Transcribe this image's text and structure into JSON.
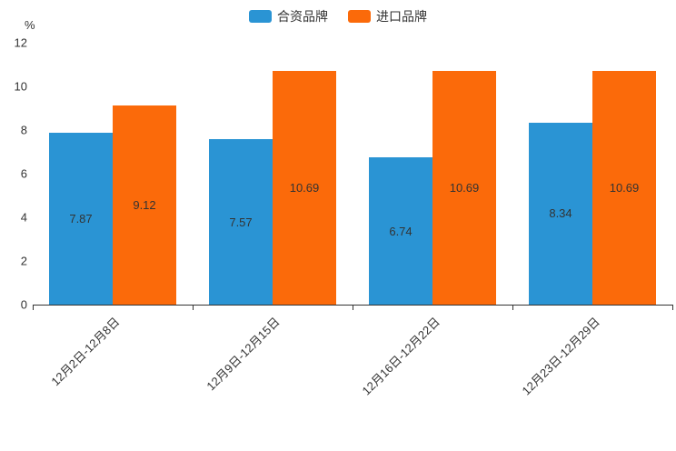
{
  "chart_data": {
    "type": "bar",
    "title": "",
    "categories": [
      "12月2日-12月8日",
      "12月9日-12月15日",
      "12月16日-12月22日",
      "12月23日-12月29日"
    ],
    "series": [
      {
        "name": "合资品牌",
        "color": "#2a94d4",
        "values": [
          7.87,
          7.57,
          6.74,
          8.34
        ]
      },
      {
        "name": "进口品牌",
        "color": "#fb6a0a",
        "values": [
          9.12,
          10.69,
          10.69,
          10.69
        ]
      }
    ],
    "ylabel": "%",
    "ylim": [
      0,
      12
    ],
    "ytick_step": 2,
    "yticks": [
      0,
      2,
      4,
      6,
      8,
      10,
      12
    ],
    "legend_position": "top-center",
    "grid": false,
    "value_label_position": "inside-center"
  },
  "colors": {
    "axis": "#333333",
    "text": "#333333",
    "background": "#ffffff"
  }
}
